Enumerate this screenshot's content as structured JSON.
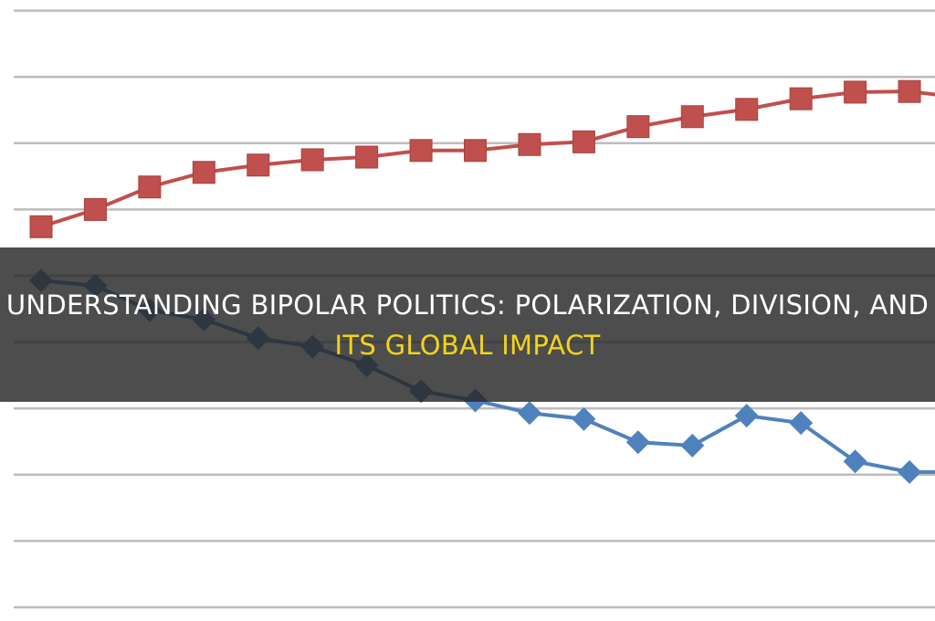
{
  "title": {
    "line1": "UNDERSTANDING BIPOLAR POLITICS: POLARIZATION, DIVISION, AND",
    "line2": "ITS GLOBAL IMPACT",
    "line1_color": "#ffffff",
    "line2_color": "#f2d31b"
  },
  "chart_data": {
    "type": "line",
    "title": "",
    "xlabel": "",
    "ylabel": "",
    "x": [
      1,
      2,
      3,
      4,
      5,
      6,
      7,
      8,
      9,
      10,
      11,
      12,
      13,
      14,
      15,
      16,
      17
    ],
    "ylim": [
      0,
      9
    ],
    "grid": true,
    "legend": "none",
    "series": [
      {
        "marker": "square",
        "color": "#c0504d",
        "values": [
          5.74,
          6.0,
          6.34,
          6.56,
          6.67,
          6.75,
          6.79,
          6.89,
          6.89,
          6.98,
          7.02,
          7.25,
          7.4,
          7.51,
          7.67,
          7.77,
          7.78
        ]
      },
      {
        "marker": "diamond",
        "color": "#4f81bd",
        "values": [
          4.93,
          4.85,
          4.48,
          4.34,
          4.06,
          3.93,
          3.65,
          3.26,
          3.12,
          2.93,
          2.84,
          2.49,
          2.44,
          2.89,
          2.78,
          2.2,
          2.04
        ]
      }
    ]
  }
}
